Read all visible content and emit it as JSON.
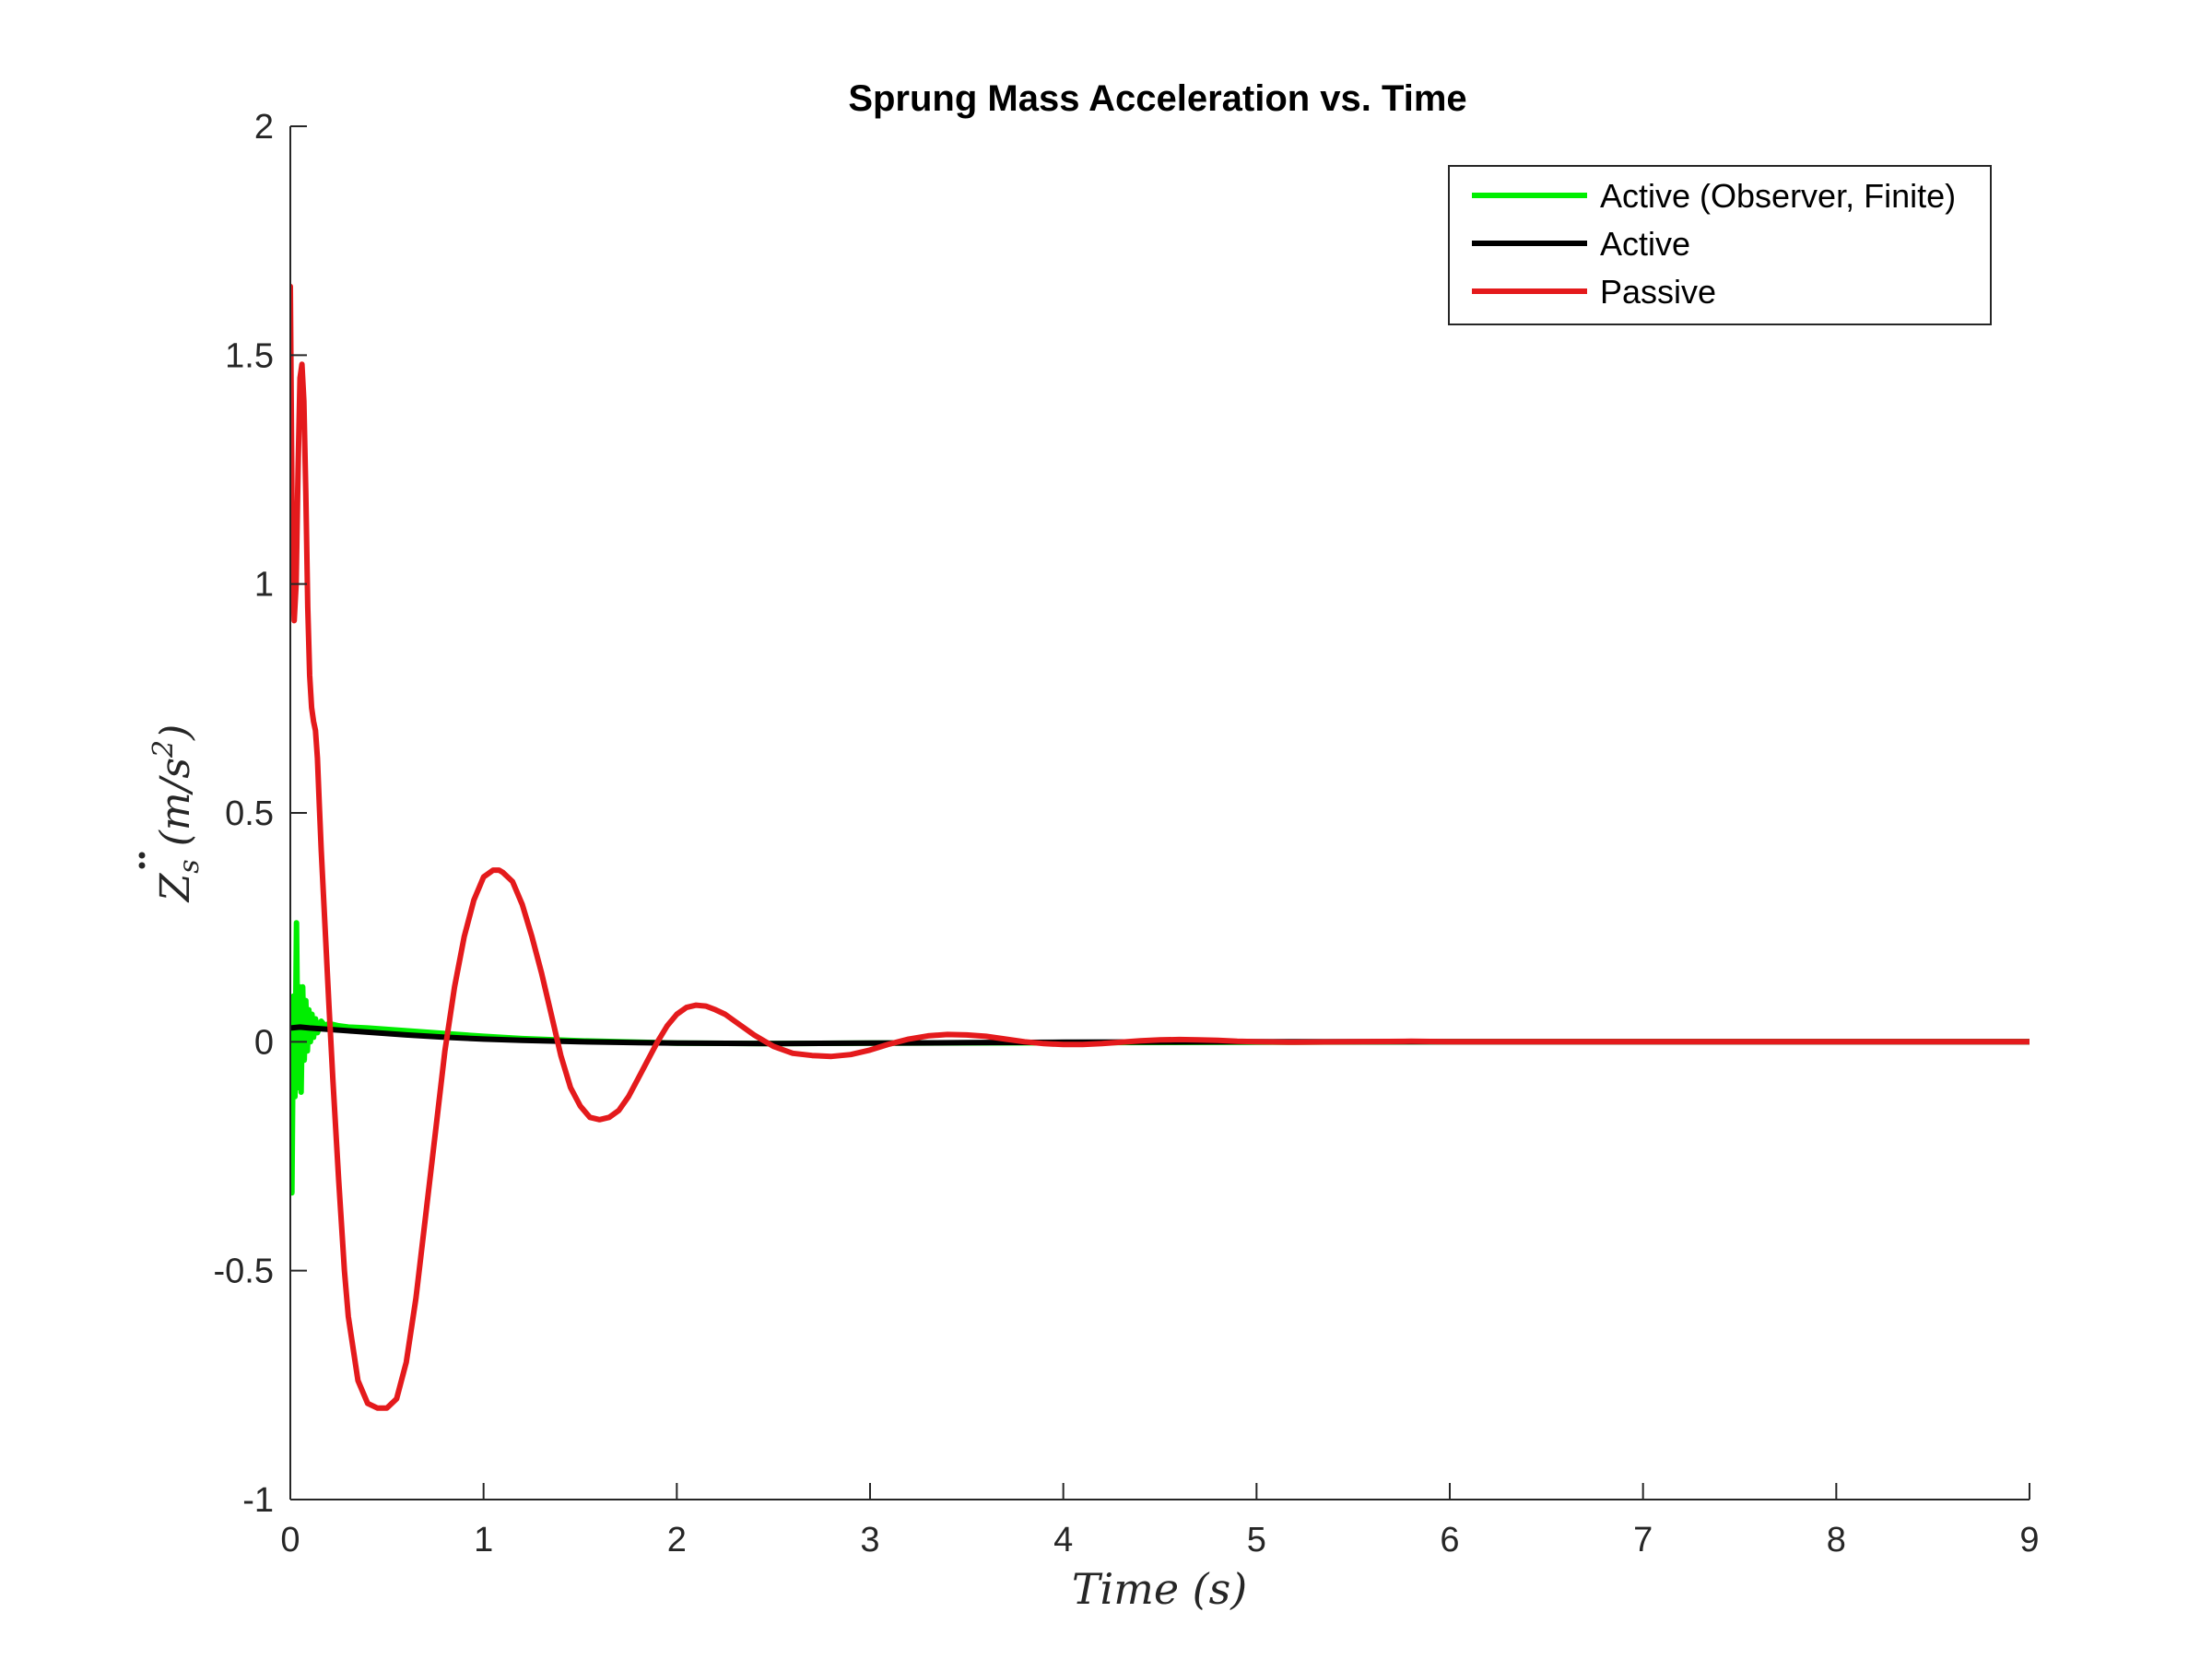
{
  "chart_data": {
    "type": "line",
    "title": "Sprung Mass Acceleration vs. Time",
    "xlabel": "Time (s)",
    "ylabel_parts": {
      "main": "Z",
      "sub": "s",
      "unit_open": "(m/s",
      "unit_sup": "2",
      "unit_close": ")"
    },
    "xlim": [
      0,
      9
    ],
    "ylim": [
      -1,
      2
    ],
    "xticks": [
      0,
      1,
      2,
      3,
      4,
      5,
      6,
      7,
      8,
      9
    ],
    "xtick_labels": [
      "0",
      "1",
      "2",
      "3",
      "4",
      "5",
      "6",
      "7",
      "8",
      "9"
    ],
    "yticks": [
      -1,
      -0.5,
      0,
      0.5,
      1,
      1.5,
      2
    ],
    "ytick_labels": [
      "-1",
      "-0.5",
      "0",
      "0.5",
      "1",
      "1.5",
      "2"
    ],
    "grid": false,
    "legend_position": "top-right",
    "series": [
      {
        "name": "Active (Observer, Finite)",
        "color": "#00ee00",
        "x": [
          0,
          0.008,
          0.016,
          0.024,
          0.032,
          0.04,
          0.048,
          0.056,
          0.064,
          0.072,
          0.08,
          0.088,
          0.096,
          0.104,
          0.112,
          0.12,
          0.13,
          0.14,
          0.16,
          0.18,
          0.2,
          0.25,
          0.3,
          0.4,
          0.5,
          0.6,
          0.8,
          1.0,
          1.2,
          1.5,
          2.0,
          2.5,
          3.0,
          4.0,
          5.0,
          6.0,
          7.0,
          8.0,
          9.0
        ],
        "y": [
          0.03,
          -0.33,
          0.1,
          -0.12,
          0.26,
          -0.1,
          0.12,
          -0.11,
          0.12,
          -0.04,
          0.09,
          -0.02,
          0.07,
          0.0,
          0.06,
          0.01,
          0.05,
          0.02,
          0.045,
          0.035,
          0.04,
          0.035,
          0.032,
          0.03,
          0.027,
          0.024,
          0.018,
          0.012,
          0.007,
          0.002,
          -0.003,
          -0.004,
          -0.003,
          -0.002,
          -0.001,
          0.0,
          0.0,
          0.0,
          0.0
        ]
      },
      {
        "name": "Active",
        "color": "#000000",
        "x": [
          0,
          0.05,
          0.1,
          0.2,
          0.3,
          0.4,
          0.5,
          0.6,
          0.8,
          1.0,
          1.2,
          1.5,
          1.8,
          2.0,
          2.5,
          3.0,
          3.5,
          4.0,
          5.0,
          6.0,
          7.0,
          8.0,
          9.0
        ],
        "y": [
          0.03,
          0.032,
          0.03,
          0.027,
          0.024,
          0.021,
          0.018,
          0.015,
          0.01,
          0.006,
          0.003,
          0.0,
          -0.002,
          -0.003,
          -0.004,
          -0.003,
          -0.002,
          -0.001,
          0.0,
          0.0,
          0.0,
          0.0,
          0.0
        ]
      },
      {
        "name": "Passive",
        "color": "#e41a1c",
        "x": [
          0,
          0.01,
          0.02,
          0.03,
          0.04,
          0.05,
          0.06,
          0.07,
          0.08,
          0.09,
          0.1,
          0.11,
          0.12,
          0.13,
          0.14,
          0.15,
          0.16,
          0.18,
          0.2,
          0.22,
          0.25,
          0.28,
          0.3,
          0.35,
          0.4,
          0.45,
          0.5,
          0.55,
          0.6,
          0.65,
          0.7,
          0.75,
          0.8,
          0.85,
          0.9,
          0.95,
          1.0,
          1.05,
          1.08,
          1.1,
          1.15,
          1.2,
          1.25,
          1.3,
          1.35,
          1.4,
          1.45,
          1.5,
          1.55,
          1.6,
          1.65,
          1.7,
          1.75,
          1.8,
          1.85,
          1.9,
          1.95,
          2.0,
          2.05,
          2.1,
          2.15,
          2.2,
          2.25,
          2.3,
          2.35,
          2.4,
          2.5,
          2.6,
          2.7,
          2.8,
          2.9,
          3.0,
          3.1,
          3.2,
          3.3,
          3.4,
          3.5,
          3.6,
          3.7,
          3.8,
          3.9,
          4.0,
          4.1,
          4.2,
          4.3,
          4.4,
          4.5,
          4.6,
          4.7,
          4.8,
          4.9,
          5.0,
          5.2,
          5.5,
          5.8,
          6.0,
          6.5,
          7.0,
          7.5,
          8.0,
          8.5,
          9.0
        ],
        "y": [
          1.65,
          1.1,
          0.92,
          1.0,
          1.25,
          1.45,
          1.48,
          1.4,
          1.2,
          0.95,
          0.8,
          0.73,
          0.7,
          0.68,
          0.62,
          0.52,
          0.42,
          0.25,
          0.08,
          -0.08,
          -0.3,
          -0.5,
          -0.6,
          -0.74,
          -0.79,
          -0.8,
          -0.8,
          -0.78,
          -0.7,
          -0.56,
          -0.38,
          -0.2,
          -0.02,
          0.12,
          0.23,
          0.31,
          0.36,
          0.375,
          0.375,
          0.37,
          0.35,
          0.3,
          0.23,
          0.15,
          0.06,
          -0.03,
          -0.1,
          -0.14,
          -0.165,
          -0.17,
          -0.165,
          -0.15,
          -0.12,
          -0.08,
          -0.04,
          0.0,
          0.035,
          0.06,
          0.075,
          0.08,
          0.078,
          0.07,
          0.06,
          0.045,
          0.03,
          0.015,
          -0.01,
          -0.025,
          -0.03,
          -0.032,
          -0.028,
          -0.018,
          -0.005,
          0.006,
          0.013,
          0.016,
          0.015,
          0.012,
          0.006,
          0.0,
          -0.004,
          -0.006,
          -0.006,
          -0.004,
          -0.001,
          0.002,
          0.004,
          0.005,
          0.004,
          0.003,
          0.001,
          0.0,
          -0.001,
          0.0,
          0.001,
          0.0,
          0.0,
          0.0,
          0.0,
          0.0,
          0.0,
          0.0
        ]
      }
    ]
  }
}
